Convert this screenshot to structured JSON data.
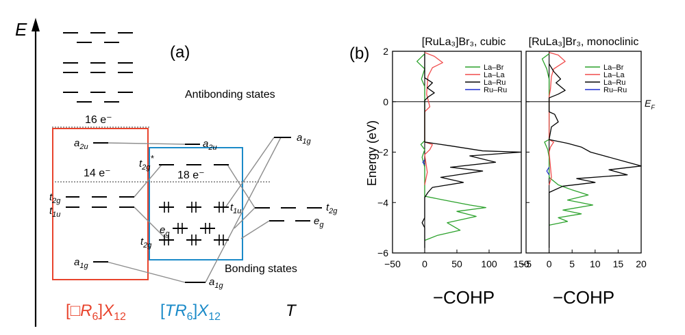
{
  "panel_a": {
    "panel_label": "(a)",
    "axis_label": "E",
    "antibonding_label": "Antibonding states",
    "bonding_label": "Bonding states",
    "electron_count_16": "16 e⁻",
    "electron_count_14": "14 e⁻",
    "electron_count_18": "18 e⁻",
    "levels": {
      "a2u_left": "a",
      "a2u_left_sub": "2u",
      "t2g_left": "t",
      "t2g_left_sub": "2g",
      "t1u_left": "t",
      "t1u_left_sub": "1u",
      "a1g_left": "a",
      "a1g_left_sub": "1g",
      "a2u_mid": "a",
      "a2u_mid_sub": "2u",
      "t2g_star": "t",
      "t2g_star_sub": "2g",
      "t2g_star_sup": "*",
      "t1u_mid": "t",
      "t1u_mid_sub": "1u",
      "eg_mid": "e",
      "eg_mid_sub": "g",
      "t2g_mid": "t",
      "t2g_mid_sub": "2g",
      "a1g_mid": "a",
      "a1g_mid_sub": "1g",
      "a1g_right": "a",
      "a1g_right_sub": "1g",
      "t2g_right": "t",
      "t2g_right_sub": "2g",
      "eg_right": "e",
      "eg_right_sub": "g"
    },
    "bottom_labels": {
      "left_open": "[□",
      "left_R": "R",
      "left_6": "6",
      "left_close": "]",
      "left_X": "X",
      "left_12": "12",
      "mid_open": "[",
      "mid_TR": "TR",
      "mid_6": "6",
      "mid_close": "]",
      "mid_X": "X",
      "mid_12": "12",
      "right_T": "T"
    },
    "colors": {
      "left_box": "#e8432c",
      "mid_box": "#1a8ac8",
      "connector": "#8c8c8c"
    }
  },
  "panel_b": {
    "panel_label": "(b)",
    "y_axis_label": "Energy (eV)",
    "ef_label": "E",
    "ef_sub": "F",
    "plots": [
      {
        "title": "[RuLa₃]Br₃, cubic",
        "xlabel": "−COHP",
        "x_ticks": [
          "−50",
          "0",
          "50",
          "100",
          "150"
        ],
        "y_ticks": [
          "2",
          "0",
          "−2",
          "−4",
          "−6"
        ]
      },
      {
        "title": "[RuLa₃]Br₃, monoclinic",
        "xlabel": "−COHP",
        "x_ticks": [
          "−5",
          "0",
          "5",
          "10",
          "15",
          "20"
        ],
        "y_ticks": [
          "2",
          "0",
          "−2",
          "−4",
          "−6"
        ]
      }
    ],
    "legend": [
      "La–Br",
      "La–La",
      "La–Ru",
      "Ru–Ru"
    ],
    "legend_colors": [
      "#2aa12a",
      "#f04b4b",
      "#000000",
      "#1f2fd0"
    ]
  },
  "chart_data": [
    {
      "type": "line",
      "title": "[RuLa₃]Br₃, cubic",
      "xlabel": "−COHP",
      "ylabel": "Energy (eV)",
      "xlim": [
        -50,
        150
      ],
      "ylim": [
        -6,
        2
      ],
      "legend_position": "top-right",
      "series": [
        {
          "name": "La–Br",
          "color": "#2aa12a",
          "points": [
            [
              0,
              1.9
            ],
            [
              -12,
              1.6
            ],
            [
              0,
              1.3
            ],
            [
              -5,
              0.9
            ],
            [
              0,
              0.6
            ],
            [
              0,
              -1.55
            ],
            [
              -6,
              -1.7
            ],
            [
              0,
              -1.9
            ],
            [
              -4,
              -2.2
            ],
            [
              0,
              -2.6
            ],
            [
              0,
              -3.75
            ],
            [
              30,
              -3.9
            ],
            [
              70,
              -4.1
            ],
            [
              95,
              -4.2
            ],
            [
              50,
              -4.35
            ],
            [
              80,
              -4.55
            ],
            [
              35,
              -4.8
            ],
            [
              55,
              -5.1
            ],
            [
              20,
              -5.3
            ],
            [
              0,
              -5.5
            ]
          ]
        },
        {
          "name": "La–La",
          "color": "#f04b4b",
          "points": [
            [
              0,
              1.95
            ],
            [
              15,
              1.8
            ],
            [
              28,
              1.55
            ],
            [
              12,
              1.35
            ],
            [
              5,
              1.0
            ],
            [
              3,
              0.3
            ],
            [
              6,
              0.0
            ],
            [
              8,
              -0.2
            ],
            [
              0,
              -0.4
            ],
            [
              0,
              -1.6
            ],
            [
              12,
              -1.7
            ],
            [
              8,
              -1.9
            ],
            [
              0,
              -2.1
            ],
            [
              4,
              -2.8
            ],
            [
              0,
              -3.3
            ]
          ]
        },
        {
          "name": "La–Ru",
          "color": "#000000",
          "points": [
            [
              0,
              1.9
            ],
            [
              0,
              0.95
            ],
            [
              12,
              0.75
            ],
            [
              4,
              0.55
            ],
            [
              15,
              0.35
            ],
            [
              6,
              0.2
            ],
            [
              0,
              0.05
            ],
            [
              0,
              -1.6
            ],
            [
              40,
              -1.75
            ],
            [
              90,
              -1.95
            ],
            [
              150,
              -2.0
            ],
            [
              70,
              -2.15
            ],
            [
              110,
              -2.4
            ],
            [
              40,
              -2.6
            ],
            [
              90,
              -2.75
            ],
            [
              25,
              -3.0
            ],
            [
              60,
              -3.2
            ],
            [
              12,
              -3.4
            ],
            [
              5,
              -3.6
            ],
            [
              0,
              -3.8
            ],
            [
              0,
              -4.6
            ],
            [
              -4,
              -4.8
            ],
            [
              0,
              -5.0
            ],
            [
              0,
              -5.8
            ]
          ]
        },
        {
          "name": "Ru–Ru",
          "color": "#1f2fd0",
          "points": [
            [
              0,
              -2.3
            ],
            [
              -3,
              -2.4
            ],
            [
              0,
              -2.5
            ]
          ]
        }
      ]
    },
    {
      "type": "line",
      "title": "[RuLa₃]Br₃, monoclinic",
      "xlabel": "−COHP",
      "ylabel": "Energy (eV)",
      "xlim": [
        -5,
        20
      ],
      "ylim": [
        -6,
        2
      ],
      "legend_position": "top-right",
      "series": [
        {
          "name": "La–Br",
          "color": "#2aa12a",
          "points": [
            [
              0,
              1.9
            ],
            [
              -1.5,
              1.7
            ],
            [
              -0.5,
              1.3
            ],
            [
              0,
              0.9
            ],
            [
              0,
              -1.5
            ],
            [
              -1,
              -1.6
            ],
            [
              -0.3,
              -1.9
            ],
            [
              0,
              -2.2
            ],
            [
              0,
              -3.0
            ],
            [
              2,
              -3.3
            ],
            [
              5,
              -3.5
            ],
            [
              8.5,
              -3.7
            ],
            [
              4,
              -3.9
            ],
            [
              9.5,
              -4.1
            ],
            [
              3,
              -4.3
            ],
            [
              7,
              -4.45
            ],
            [
              2,
              -4.6
            ],
            [
              4,
              -4.75
            ],
            [
              0,
              -4.9
            ]
          ]
        },
        {
          "name": "La–La",
          "color": "#f04b4b",
          "points": [
            [
              0,
              1.95
            ],
            [
              2,
              1.85
            ],
            [
              3.5,
              1.6
            ],
            [
              1,
              1.3
            ],
            [
              0.5,
              1.0
            ],
            [
              0.3,
              0.5
            ],
            [
              0,
              0.2
            ],
            [
              0,
              -1.5
            ],
            [
              1,
              -1.6
            ],
            [
              0.3,
              -1.8
            ],
            [
              0,
              -2.0
            ],
            [
              0.5,
              -3.0
            ],
            [
              0,
              -3.3
            ]
          ]
        },
        {
          "name": "La–Ru",
          "color": "#000000",
          "points": [
            [
              0,
              1.5
            ],
            [
              1,
              1.2
            ],
            [
              2.5,
              0.9
            ],
            [
              1.5,
              0.75
            ],
            [
              3.5,
              0.45
            ],
            [
              2,
              0.3
            ],
            [
              0,
              0.15
            ],
            [
              0,
              -0.4
            ],
            [
              1.2,
              -0.5
            ],
            [
              2,
              -0.8
            ],
            [
              0.5,
              -1.0
            ],
            [
              0,
              -1.5
            ],
            [
              4,
              -1.65
            ],
            [
              7,
              -1.8
            ],
            [
              9,
              -2.0
            ],
            [
              12,
              -2.15
            ],
            [
              17,
              -2.4
            ],
            [
              20,
              -2.55
            ],
            [
              13,
              -2.7
            ],
            [
              17,
              -2.9
            ],
            [
              6,
              -3.05
            ],
            [
              10,
              -3.2
            ],
            [
              3,
              -3.35
            ],
            [
              0,
              -3.6
            ],
            [
              0,
              -5.8
            ]
          ]
        },
        {
          "name": "Ru–Ru",
          "color": "#1f2fd0",
          "points": [
            [
              0,
              -2.6
            ],
            [
              -0.5,
              -2.75
            ],
            [
              0,
              -2.9
            ]
          ]
        }
      ]
    }
  ]
}
